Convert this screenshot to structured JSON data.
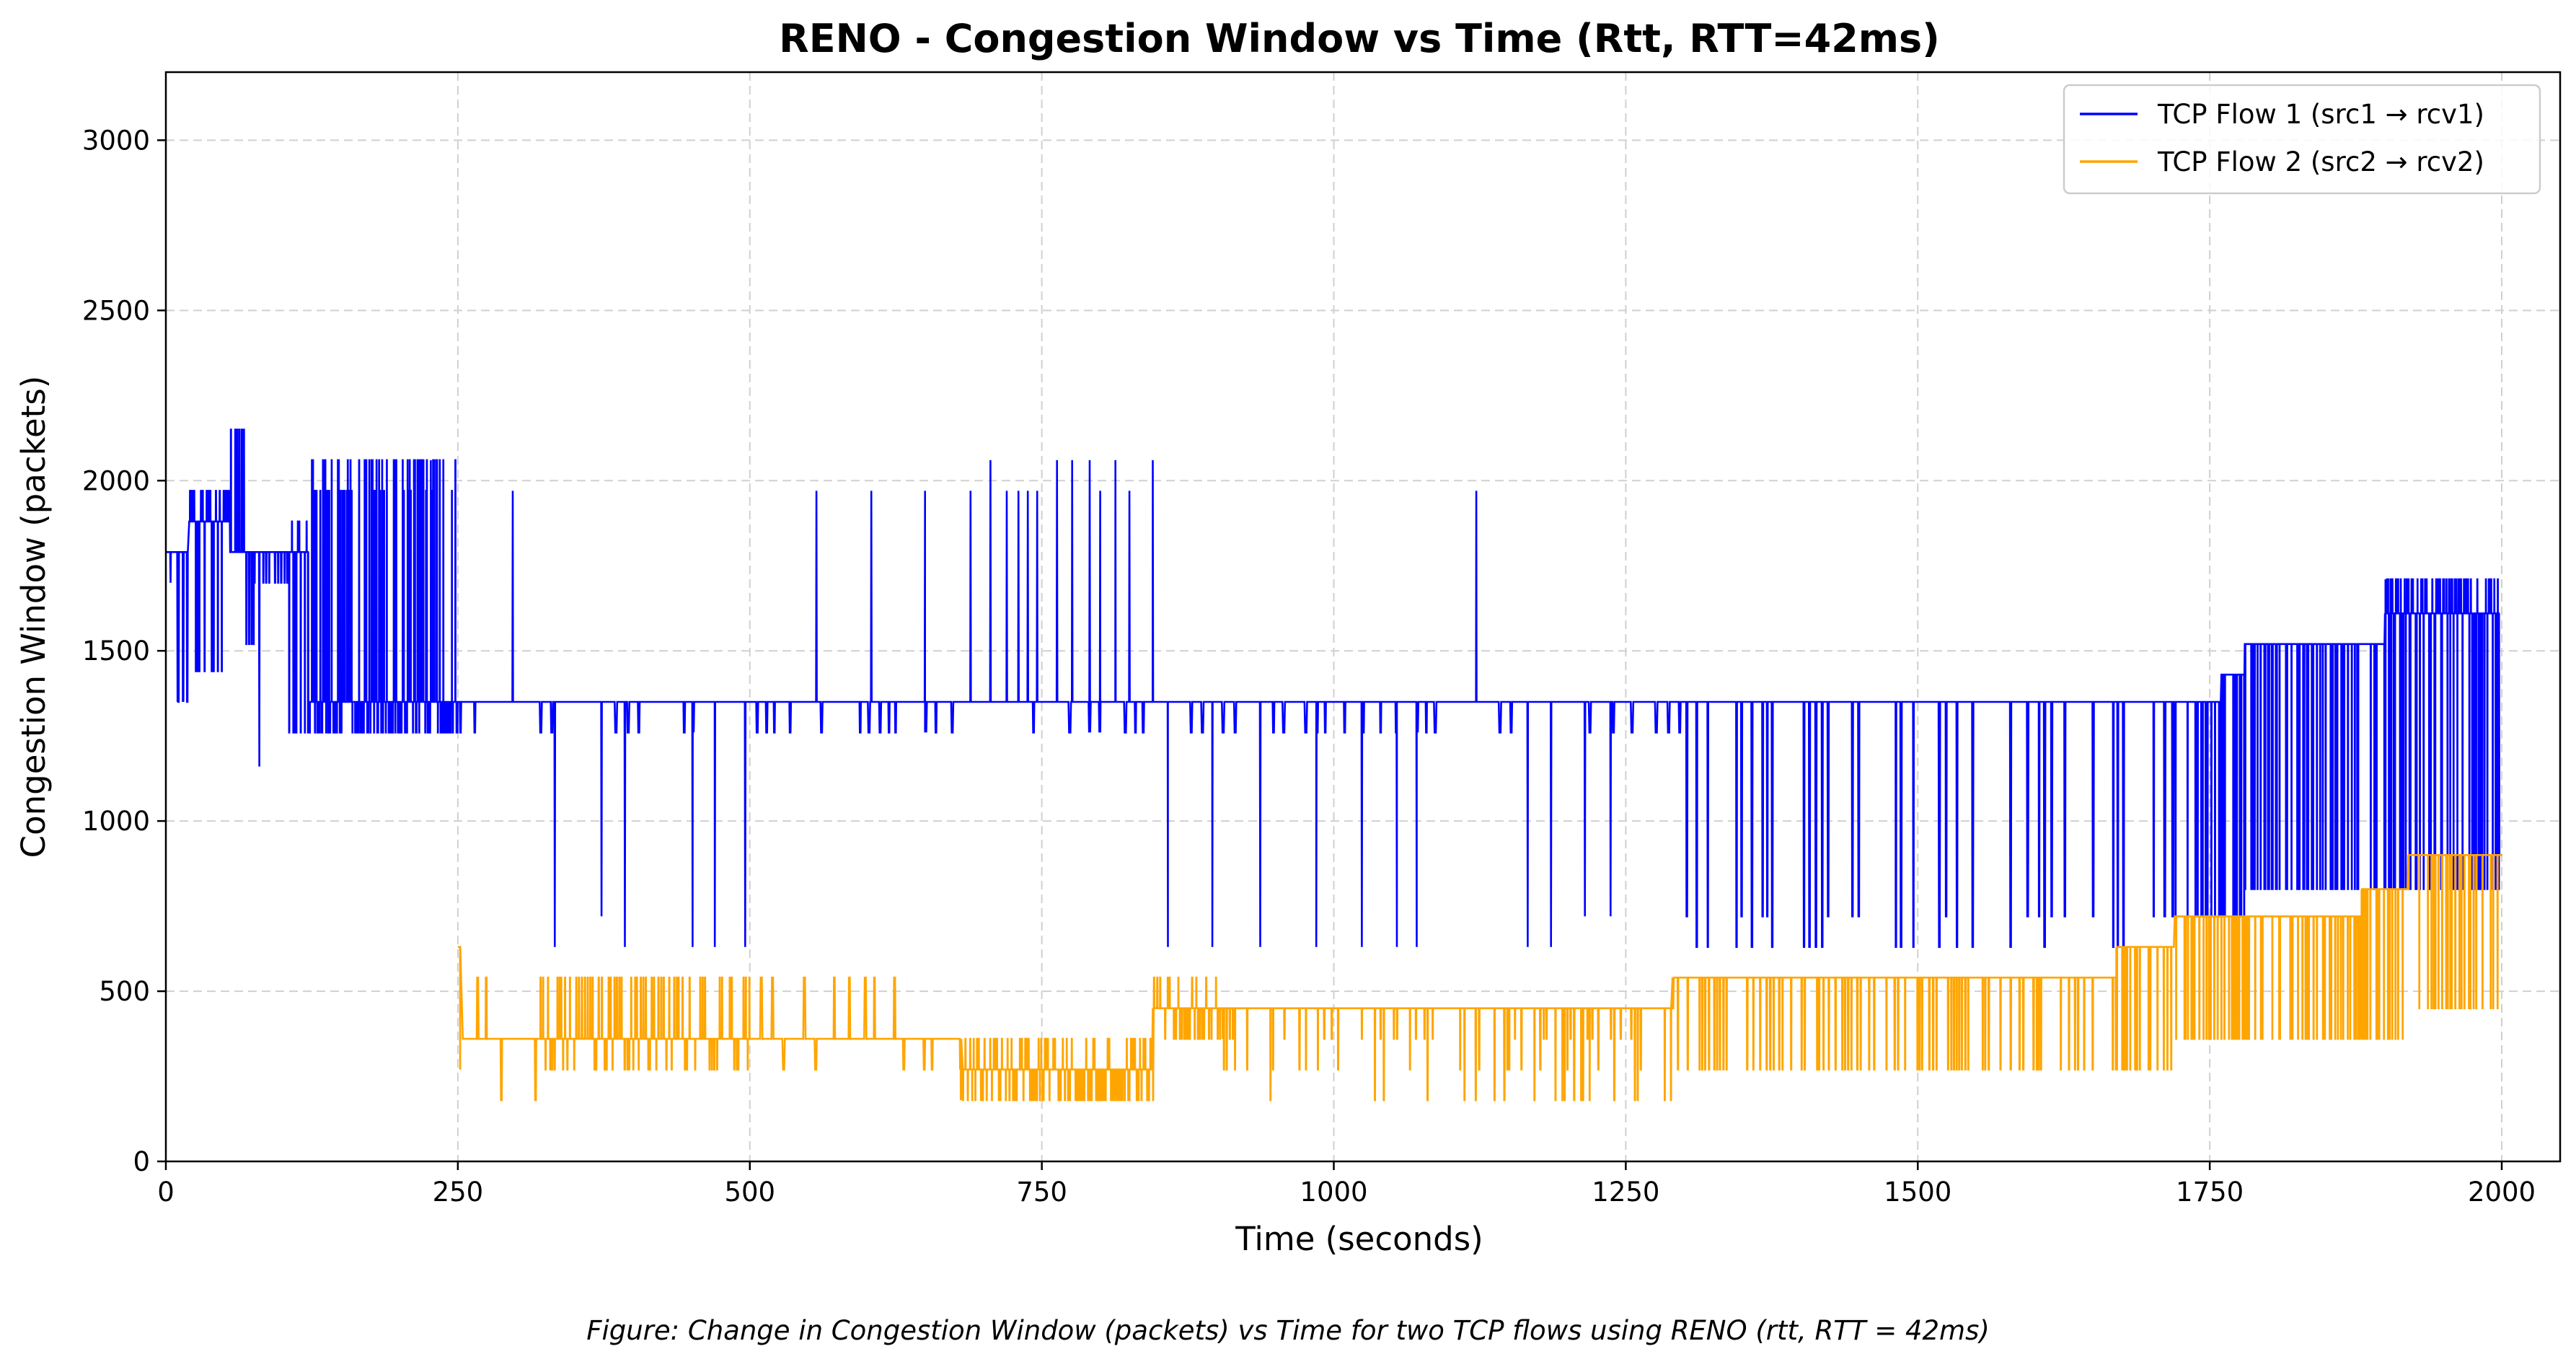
{
  "chart_data": {
    "type": "line",
    "title": "RENO - Congestion Window vs Time (Rtt, RTT=42ms)",
    "xlabel": "Time (seconds)",
    "ylabel": "Congestion Window (packets)",
    "xlim": [
      0,
      2050
    ],
    "ylim": [
      0,
      3200
    ],
    "xticks": [
      0,
      250,
      500,
      750,
      1000,
      1250,
      1500,
      1750,
      2000
    ],
    "yticks": [
      0,
      500,
      1000,
      1500,
      2000,
      2500,
      3000
    ],
    "grid": true,
    "legend_position": "top-right",
    "caption": "Figure: Change in Congestion Window (packets) vs Time for two TCP flows using RENO (rtt, RTT = 42ms)",
    "series": [
      {
        "name": "TCP Flow 1 (src1 → rcv1)",
        "color": "#0000ff",
        "segments": [
          {
            "t0": 0,
            "t1": 20,
            "base": 1790,
            "high": 1790,
            "low": 1350,
            "period": 4,
            "dips": [
              [
                4,
                1700
              ],
              [
                10,
                1350
              ],
              [
                15,
                1350
              ]
            ]
          },
          {
            "t0": 20,
            "t1": 55,
            "base": 1880,
            "high": 1970,
            "low": 1440,
            "period": 1.5
          },
          {
            "t0": 55,
            "t1": 75,
            "base": 1790,
            "high": 2150,
            "low": 1520,
            "period": 2
          },
          {
            "t0": 75,
            "t1": 105,
            "base": 1790,
            "high": 1790,
            "low": 1700,
            "period": 2.5,
            "dips": [
              [
                80,
                1160
              ]
            ]
          },
          {
            "t0": 105,
            "t1": 122,
            "base": 1790,
            "high": 1880,
            "low": 1260,
            "period": 1.5
          },
          {
            "t0": 122,
            "t1": 250,
            "base": 1350,
            "high": 2060,
            "low": 1260,
            "period": 0.8,
            "mid": 1970
          },
          {
            "t0": 250,
            "t1": 1300,
            "base": 1350,
            "high": 1350,
            "low": 1260,
            "period": 8,
            "spikes": [
              [
                297,
                1970
              ],
              [
                557,
                1970
              ],
              [
                604,
                1970
              ],
              [
                650,
                1970
              ],
              [
                689,
                1970
              ],
              [
                706,
                2060
              ],
              [
                720,
                1970
              ],
              [
                730,
                1970
              ],
              [
                738,
                1970
              ],
              [
                746,
                1970
              ],
              [
                763,
                2060
              ],
              [
                776,
                2060
              ],
              [
                791,
                2060
              ],
              [
                800,
                1970
              ],
              [
                813,
                2060
              ],
              [
                825,
                1970
              ],
              [
                845,
                2060
              ],
              [
                1122,
                1970
              ]
            ],
            "dips": [
              [
                333,
                630
              ],
              [
                373,
                720
              ],
              [
                393,
                630
              ],
              [
                451,
                630
              ],
              [
                470,
                630
              ],
              [
                496,
                630
              ],
              [
                858,
                630
              ],
              [
                896,
                630
              ],
              [
                937,
                630
              ],
              [
                985,
                630
              ],
              [
                1024,
                630
              ],
              [
                1054,
                630
              ],
              [
                1071,
                630
              ],
              [
                1166,
                630
              ],
              [
                1186,
                630
              ],
              [
                1215,
                720
              ],
              [
                1237,
                720
              ]
            ]
          },
          {
            "t0": 1300,
            "t1": 1720,
            "base": 1350,
            "high": 1350,
            "low": 720,
            "period": 5,
            "lowvar": [
              630,
              720
            ]
          },
          {
            "t0": 1720,
            "t1": 1760,
            "base": 1350,
            "high": 1350,
            "low": 720,
            "period": 1.5
          },
          {
            "t0": 1760,
            "t1": 1780,
            "base": 1430,
            "high": 1430,
            "low": 720,
            "period": 1.2
          },
          {
            "t0": 1780,
            "t1": 1900,
            "base": 1520,
            "high": 1520,
            "low": 800,
            "period": 1
          },
          {
            "t0": 1900,
            "t1": 1998,
            "base": 1610,
            "high": 1710,
            "low": 800,
            "period": 1
          },
          {
            "t0": 1998,
            "t1": 2000,
            "base": 900,
            "high": 900,
            "low": 900,
            "period": 1
          }
        ]
      },
      {
        "name": "TCP Flow 2 (src2 → rcv2)",
        "color": "#ffa500",
        "segments": [
          {
            "t0": 250,
            "t1": 252,
            "base": 630,
            "high": 630,
            "low": 270,
            "period": 1
          },
          {
            "t0": 252,
            "t1": 320,
            "base": 360,
            "high": 540,
            "low": 180,
            "period": 6,
            "sparse": true
          },
          {
            "t0": 320,
            "t1": 500,
            "base": 360,
            "high": 540,
            "low": 270,
            "period": 2
          },
          {
            "t0": 500,
            "t1": 680,
            "base": 360,
            "high": 540,
            "low": 270,
            "period": 8,
            "sparse": true
          },
          {
            "t0": 680,
            "t1": 845,
            "base": 270,
            "high": 360,
            "low": 180,
            "period": 1.5
          },
          {
            "t0": 845,
            "t1": 905,
            "base": 450,
            "high": 540,
            "low": 360,
            "period": 2
          },
          {
            "t0": 905,
            "t1": 1290,
            "base": 450,
            "high": 450,
            "low": 180,
            "period": 2.5,
            "lowvar": [
              180,
              270,
              360
            ]
          },
          {
            "t0": 1290,
            "t1": 1670,
            "base": 540,
            "high": 540,
            "low": 270,
            "period": 2.5
          },
          {
            "t0": 1670,
            "t1": 1720,
            "base": 630,
            "high": 630,
            "low": 270,
            "period": 1.5
          },
          {
            "t0": 1720,
            "t1": 1880,
            "base": 720,
            "high": 720,
            "low": 360,
            "period": 1.2
          },
          {
            "t0": 1880,
            "t1": 1920,
            "base": 800,
            "high": 800,
            "low": 360,
            "period": 1.2
          },
          {
            "t0": 1920,
            "t1": 2000,
            "base": 900,
            "high": 900,
            "low": 450,
            "period": 1.2
          }
        ]
      }
    ]
  }
}
